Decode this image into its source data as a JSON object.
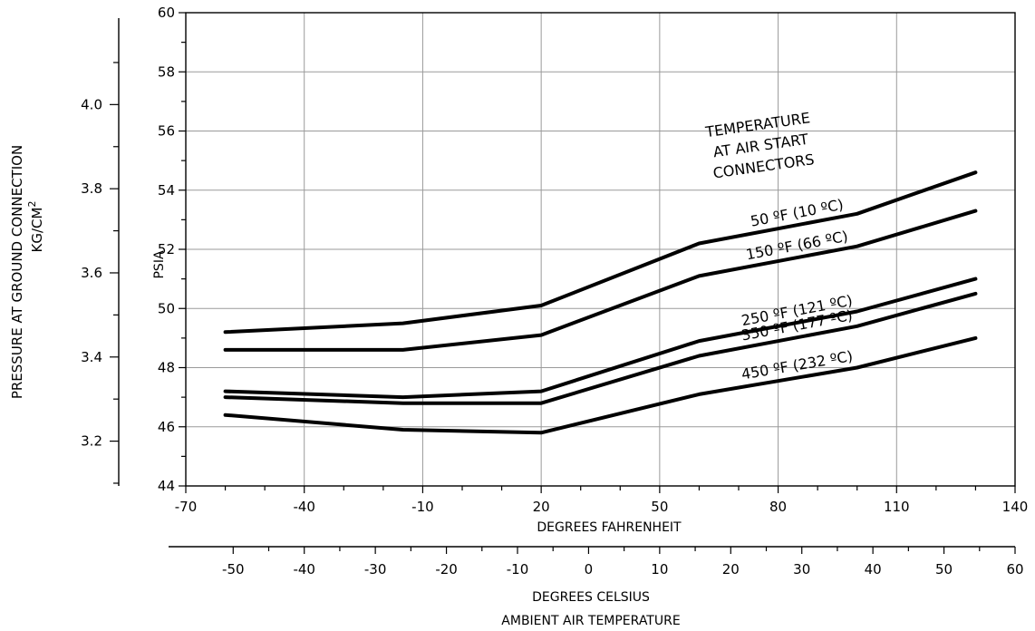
{
  "chart_data": {
    "type": "line",
    "ylabel": "PSIA",
    "ylabel_left_line1": "PRESSURE AT GROUND CONNECTION",
    "ylabel_left_line2": "KG/CM",
    "ylabel_left_sup": "2",
    "xlabel_f": "DEGREES FAHRENHEIT",
    "xlabel_c": "DEGREES CELSIUS",
    "xlabel_main": "AMBIENT AIR TEMPERATURE",
    "xlim": [
      -70,
      140
    ],
    "ylim": [
      44,
      60
    ],
    "x_ticks": [
      "-70",
      "-40",
      "-10",
      "20",
      "50",
      "80",
      "110",
      "140"
    ],
    "y_ticks": [
      "44",
      "46",
      "48",
      "50",
      "52",
      "54",
      "56",
      "58",
      "60"
    ],
    "c_ticks": [
      "-50",
      "-40",
      "-30",
      "-20",
      "-10",
      "0",
      "10",
      "20",
      "30",
      "40",
      "50",
      "60"
    ],
    "kg_ticks": [
      "3.2",
      "3.4",
      "3.6",
      "3.8",
      "4.0"
    ],
    "legend_title": [
      "TEMPERATURE",
      "AT AIR START",
      "CONNECTORS"
    ],
    "series": [
      {
        "name": "50 °F (10 °C)",
        "label": "50 ºF (10 ºC)",
        "x": [
          -60,
          -15,
          20,
          60,
          100,
          130
        ],
        "y": [
          49.2,
          49.5,
          50.1,
          52.2,
          53.2,
          54.6
        ]
      },
      {
        "name": "150 °F (66 °C)",
        "label": "150 ºF (66 ºC)",
        "x": [
          -60,
          -15,
          20,
          60,
          100,
          130
        ],
        "y": [
          48.6,
          48.6,
          49.1,
          51.1,
          52.1,
          53.3
        ]
      },
      {
        "name": "250 °F (121 °C)",
        "label": "250 ºF (121 ºC)",
        "x": [
          -60,
          -15,
          20,
          60,
          100,
          130
        ],
        "y": [
          47.2,
          47.0,
          47.2,
          48.9,
          49.9,
          51.0
        ]
      },
      {
        "name": "350 °F (177 °C)",
        "label": "350 ºF (177 ºC)",
        "x": [
          -60,
          -15,
          20,
          60,
          100,
          130
        ],
        "y": [
          47.0,
          46.8,
          46.8,
          48.4,
          49.4,
          50.5
        ]
      },
      {
        "name": "450 °F (232 °C)",
        "label": "450 ºF (232 ºC)",
        "x": [
          -60,
          -15,
          20,
          60,
          100,
          130
        ],
        "y": [
          46.4,
          45.9,
          45.8,
          47.1,
          48.0,
          49.0
        ]
      }
    ]
  }
}
